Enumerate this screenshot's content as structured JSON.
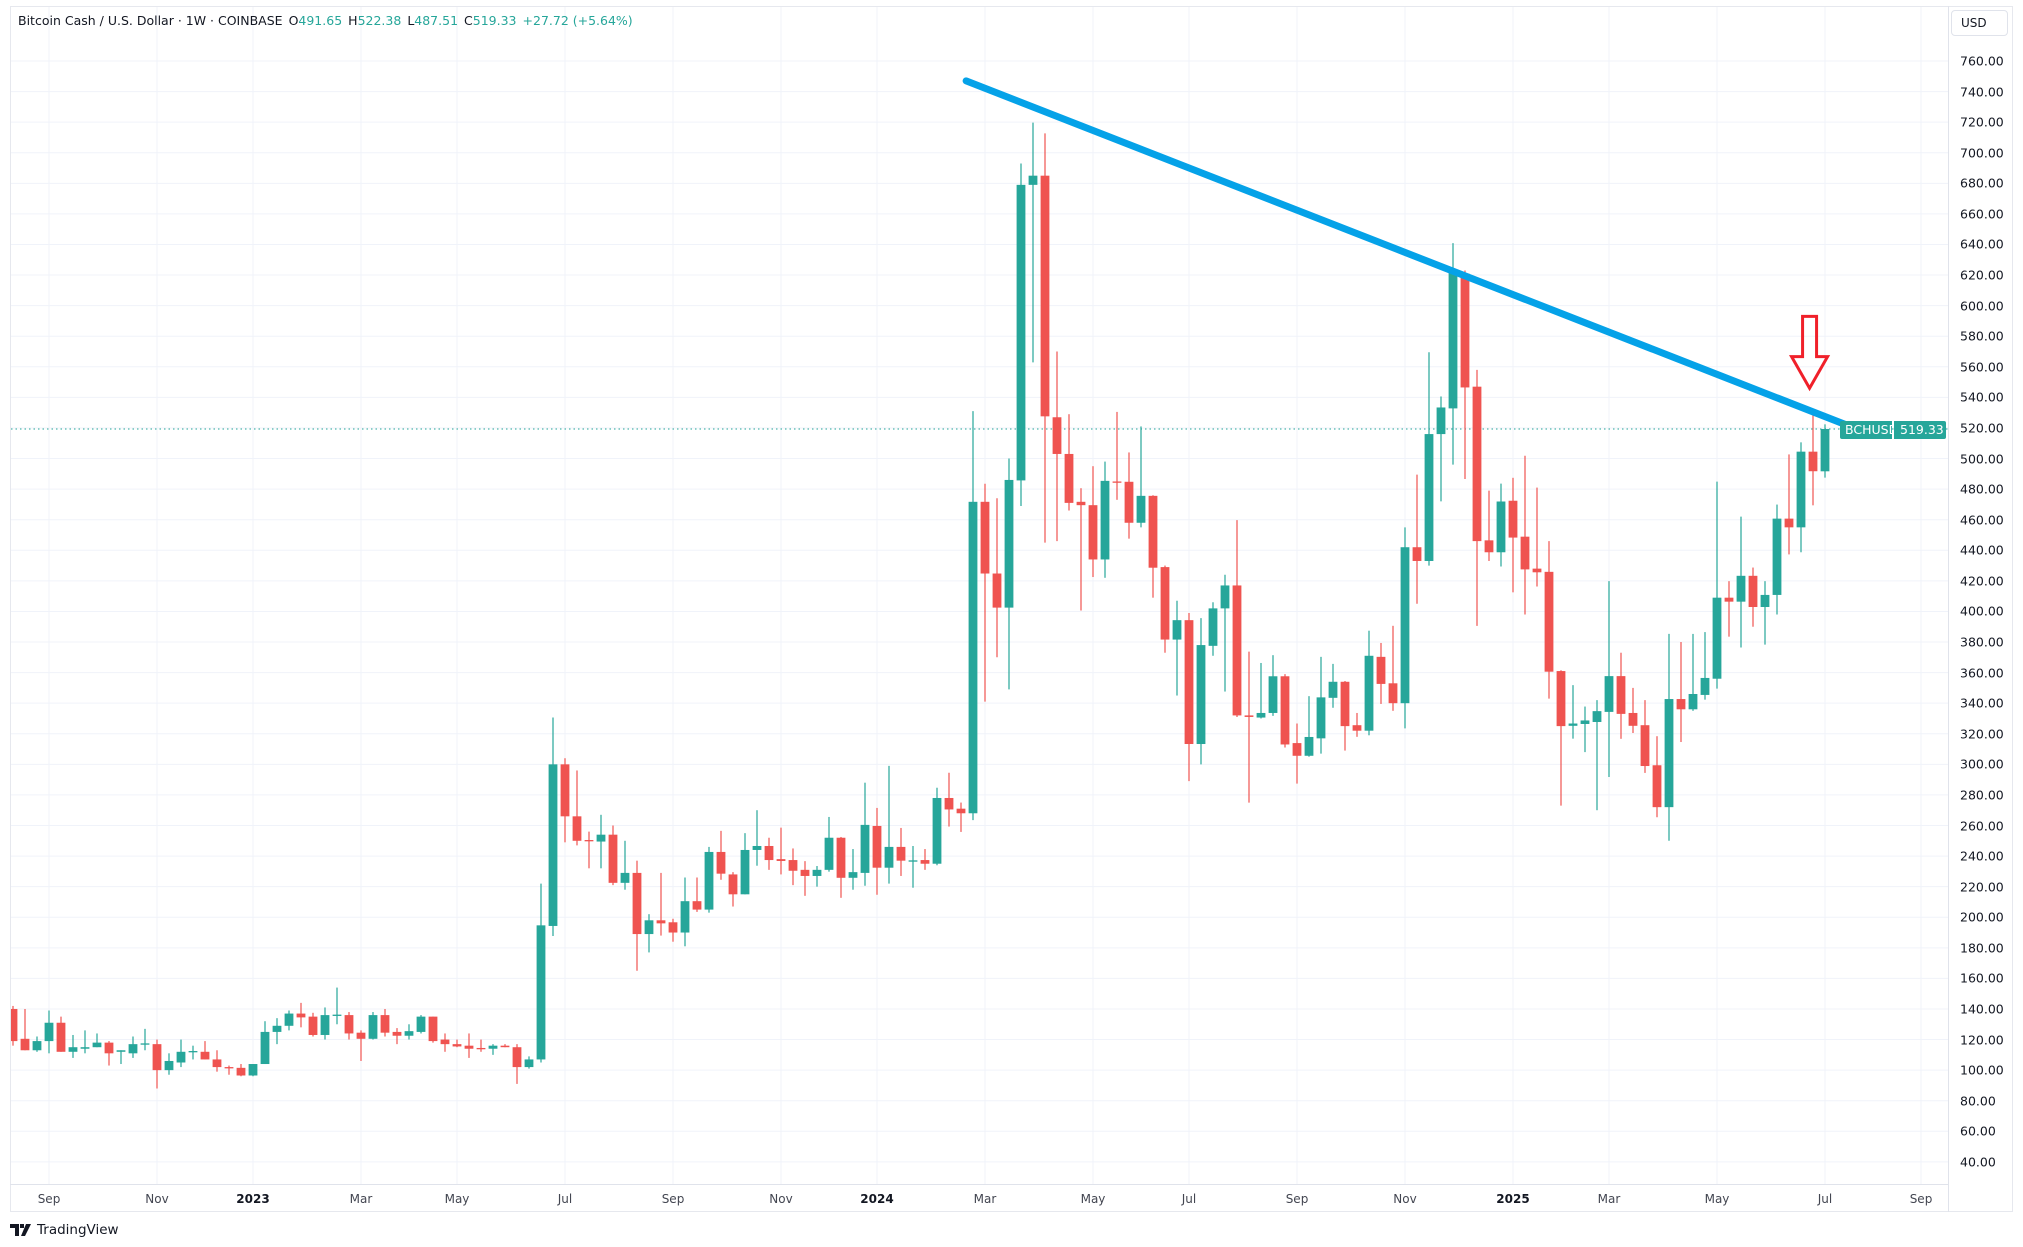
{
  "header": {
    "symbol_title": "Bitcoin Cash / U.S. Dollar · 1W · COINBASE",
    "open_label": "O",
    "open": "491.65",
    "high_label": "H",
    "high": "522.38",
    "low_label": "L",
    "low": "487.51",
    "close_label": "C",
    "close": "519.33",
    "change": "+27.72 (+5.64%)"
  },
  "price_axis": {
    "currency_button": "USD",
    "last_price_symbol": "BCHUSD",
    "last_price": "519.33"
  },
  "footer": {
    "brand": "TradingView"
  },
  "colors": {
    "up": "#26a69a",
    "down": "#ef5350",
    "trendline": "#05a2e8",
    "arrow": "#f0202a",
    "grid": "#f0f3fa"
  },
  "chart_data": {
    "type": "candlestick",
    "interval": "1W",
    "ylim": [
      40,
      770
    ],
    "grid": true,
    "y_ticks": [
      "40.00",
      "60.00",
      "80.00",
      "100.00",
      "120.00",
      "140.00",
      "160.00",
      "180.00",
      "200.00",
      "220.00",
      "240.00",
      "260.00",
      "280.00",
      "300.00",
      "320.00",
      "340.00",
      "360.00",
      "380.00",
      "400.00",
      "420.00",
      "440.00",
      "460.00",
      "480.00",
      "500.00",
      "520.00",
      "540.00",
      "560.00",
      "580.00",
      "600.00",
      "620.00",
      "640.00",
      "660.00",
      "680.00",
      "700.00",
      "720.00",
      "740.00",
      "760.00"
    ],
    "x_ticks": [
      {
        "label": "Sep",
        "date": "2022-09-05"
      },
      {
        "label": "Nov",
        "date": "2022-11-07"
      },
      {
        "label": "2023",
        "date": "2023-01-02",
        "year": true
      },
      {
        "label": "Mar",
        "date": "2023-03-06"
      },
      {
        "label": "May",
        "date": "2023-05-01"
      },
      {
        "label": "Jul",
        "date": "2023-07-03"
      },
      {
        "label": "Sep",
        "date": "2023-09-04"
      },
      {
        "label": "Nov",
        "date": "2023-11-06"
      },
      {
        "label": "2024",
        "date": "2024-01-01",
        "year": true
      },
      {
        "label": "Mar",
        "date": "2024-03-04"
      },
      {
        "label": "May",
        "date": "2024-05-06"
      },
      {
        "label": "Jul",
        "date": "2024-07-01"
      },
      {
        "label": "Sep",
        "date": "2024-09-02"
      },
      {
        "label": "Nov",
        "date": "2024-11-04"
      },
      {
        "label": "2025",
        "date": "2025-01-06",
        "year": true
      },
      {
        "label": "Mar",
        "date": "2025-03-03"
      },
      {
        "label": "May",
        "date": "2025-05-05"
      },
      {
        "label": "Jul",
        "date": "2025-07-07"
      },
      {
        "label": "Sep",
        "date": "2025-09-01"
      }
    ],
    "last_price_line": 519.33,
    "trendline": {
      "start": {
        "date": "2024-02-22",
        "price": 747
      },
      "end": {
        "date": "2025-08-01",
        "price": 516.5
      }
    },
    "arrow_annotation": {
      "date": "2025-06-28",
      "price_tip": 546,
      "price_top": 593,
      "direction": "down"
    },
    "candles_columns": [
      "date",
      "open",
      "high",
      "low",
      "close"
    ],
    "candles": [
      [
        "2022-08-15",
        140,
        142,
        116,
        119
      ],
      [
        "2022-08-22",
        120.5,
        140,
        113,
        113
      ],
      [
        "2022-08-29",
        113,
        122,
        112,
        119
      ],
      [
        "2022-09-05",
        119,
        139,
        111,
        131
      ],
      [
        "2022-09-12",
        131,
        135,
        112,
        112
      ],
      [
        "2022-09-19",
        112,
        123,
        108,
        115
      ],
      [
        "2022-09-26",
        114,
        126,
        111,
        115
      ],
      [
        "2022-10-03",
        115,
        124,
        115,
        118
      ],
      [
        "2022-10-10",
        118,
        119,
        103,
        111
      ],
      [
        "2022-10-17",
        112,
        113,
        104,
        113
      ],
      [
        "2022-10-24",
        111,
        122,
        108,
        117
      ],
      [
        "2022-10-31",
        117,
        127,
        113,
        117.5
      ],
      [
        "2022-11-07",
        117,
        120,
        88,
        100
      ],
      [
        "2022-11-14",
        100,
        111,
        97,
        106
      ],
      [
        "2022-11-21",
        105,
        120,
        102,
        112
      ],
      [
        "2022-11-28",
        112,
        116,
        107,
        112.5
      ],
      [
        "2022-12-05",
        112,
        119,
        107,
        107
      ],
      [
        "2022-12-12",
        107,
        113,
        99,
        102
      ],
      [
        "2022-12-19",
        102,
        103,
        97,
        101.5
      ],
      [
        "2022-12-26",
        101.5,
        104,
        96,
        96.5
      ],
      [
        "2023-01-02",
        96.5,
        104,
        96,
        104
      ],
      [
        "2023-01-09",
        104,
        132,
        104,
        125
      ],
      [
        "2023-01-16",
        125,
        134,
        117,
        129
      ],
      [
        "2023-01-23",
        129,
        139,
        126,
        137
      ],
      [
        "2023-01-30",
        137,
        144,
        128,
        134.5
      ],
      [
        "2023-02-06",
        135,
        137.5,
        122,
        123
      ],
      [
        "2023-02-13",
        123,
        141,
        120,
        136
      ],
      [
        "2023-02-20",
        136,
        154,
        130,
        136.3
      ],
      [
        "2023-02-27",
        136,
        138,
        120,
        124
      ],
      [
        "2023-03-06",
        124.5,
        126,
        106,
        120.5
      ],
      [
        "2023-03-13",
        120.5,
        138,
        120,
        136
      ],
      [
        "2023-03-20",
        136,
        140,
        122,
        124.5
      ],
      [
        "2023-03-27",
        125,
        127.5,
        117,
        122.5
      ],
      [
        "2023-04-03",
        122.5,
        130,
        120,
        125.5
      ],
      [
        "2023-04-10",
        125,
        136,
        124,
        135
      ],
      [
        "2023-04-17",
        135,
        135,
        118,
        119
      ],
      [
        "2023-04-24",
        120,
        124,
        112,
        117
      ],
      [
        "2023-05-01",
        117,
        120,
        115,
        115.5
      ],
      [
        "2023-05-08",
        116,
        124,
        108,
        114
      ],
      [
        "2023-05-15",
        114.5,
        120,
        112,
        114
      ],
      [
        "2023-05-22",
        114,
        117,
        110,
        116
      ],
      [
        "2023-05-29",
        116,
        117,
        115,
        115
      ],
      [
        "2023-06-05",
        115,
        117,
        91,
        102
      ],
      [
        "2023-06-12",
        102,
        109,
        101,
        107
      ],
      [
        "2023-06-19",
        107,
        222,
        105,
        194.7
      ],
      [
        "2023-06-26",
        194.3,
        330.6,
        187.7,
        300
      ],
      [
        "2023-07-03",
        300,
        304,
        249,
        266
      ],
      [
        "2023-07-10",
        266,
        296,
        247,
        250
      ],
      [
        "2023-07-17",
        250.5,
        256,
        232,
        250
      ],
      [
        "2023-07-24",
        249.5,
        267,
        232,
        254
      ],
      [
        "2023-07-31",
        254,
        260,
        221,
        222.5
      ],
      [
        "2023-08-07",
        222.5,
        250,
        218,
        229
      ],
      [
        "2023-08-14",
        229,
        237,
        165,
        189
      ],
      [
        "2023-08-21",
        189,
        202,
        177,
        198
      ],
      [
        "2023-08-28",
        198,
        229,
        188,
        196
      ],
      [
        "2023-09-04",
        196.7,
        199,
        184,
        190
      ],
      [
        "2023-09-11",
        190,
        226,
        181,
        210.5
      ],
      [
        "2023-09-18",
        210.5,
        226,
        203.5,
        205
      ],
      [
        "2023-09-25",
        205,
        246,
        203,
        242.7
      ],
      [
        "2023-10-02",
        242.7,
        256.5,
        224.5,
        228.5
      ],
      [
        "2023-10-09",
        228,
        229.5,
        207,
        215
      ],
      [
        "2023-10-16",
        215,
        255,
        215,
        244
      ],
      [
        "2023-10-23",
        244,
        270,
        233.7,
        246.6
      ],
      [
        "2023-10-30",
        246.6,
        252,
        231,
        237.4
      ],
      [
        "2023-11-06",
        238,
        258.6,
        228,
        236.8
      ],
      [
        "2023-11-13",
        237.4,
        245,
        221,
        230.4
      ],
      [
        "2023-11-20",
        231,
        236.7,
        214,
        227
      ],
      [
        "2023-11-27",
        227,
        233.5,
        220,
        231
      ],
      [
        "2023-12-04",
        231,
        265.6,
        229.8,
        252
      ],
      [
        "2023-12-11",
        252,
        252.5,
        212.7,
        225.8
      ],
      [
        "2023-12-18",
        225.8,
        244.6,
        218,
        229.5
      ],
      [
        "2023-12-25",
        229,
        288,
        220.6,
        260.4
      ],
      [
        "2024-01-01",
        259.7,
        271.5,
        214.7,
        232.4
      ],
      [
        "2024-01-08",
        232.4,
        299,
        222,
        246
      ],
      [
        "2024-01-15",
        246,
        258.4,
        227,
        237
      ],
      [
        "2024-01-22",
        237,
        246.6,
        219.3,
        237.2
      ],
      [
        "2024-01-29",
        237.4,
        244.6,
        231,
        235
      ],
      [
        "2024-02-05",
        235,
        284.7,
        234,
        278
      ],
      [
        "2024-02-12",
        278,
        294.5,
        259.3,
        270.5
      ],
      [
        "2024-02-19",
        271,
        275,
        255.8,
        268
      ],
      [
        "2024-02-26",
        268,
        531,
        263.5,
        471.7
      ],
      [
        "2024-03-04",
        471.7,
        483.5,
        341,
        424.8
      ],
      [
        "2024-03-11",
        424.8,
        474,
        370,
        402.5
      ],
      [
        "2024-03-18",
        402.5,
        500,
        349,
        486
      ],
      [
        "2024-03-25",
        485.7,
        693,
        469,
        679
      ],
      [
        "2024-04-01",
        679,
        719.7,
        562.9,
        685
      ],
      [
        "2024-04-08",
        685,
        712.7,
        445,
        527.6
      ],
      [
        "2024-04-15",
        527,
        570,
        446,
        503
      ],
      [
        "2024-04-22",
        503,
        529,
        466,
        471
      ],
      [
        "2024-04-29",
        471.7,
        480.6,
        400.6,
        469.5
      ],
      [
        "2024-05-06",
        469.5,
        495,
        422.5,
        434
      ],
      [
        "2024-05-13",
        434,
        498,
        422,
        485.4
      ],
      [
        "2024-05-20",
        485,
        530.5,
        473,
        484.4
      ],
      [
        "2024-05-27",
        484.8,
        504,
        447.6,
        458
      ],
      [
        "2024-06-03",
        458,
        521,
        455,
        475.6
      ],
      [
        "2024-06-10",
        475.6,
        476,
        409,
        428.6
      ],
      [
        "2024-06-17",
        429,
        430,
        373,
        381.6
      ],
      [
        "2024-06-24",
        381.6,
        407,
        345,
        394.3
      ],
      [
        "2024-07-01",
        394.3,
        399,
        289,
        313.3
      ],
      [
        "2024-07-08",
        313.3,
        395.6,
        300,
        378
      ],
      [
        "2024-07-15",
        377.5,
        406,
        371,
        402
      ],
      [
        "2024-07-22",
        402,
        424,
        347.6,
        417
      ],
      [
        "2024-07-29",
        417,
        459.7,
        331,
        332
      ],
      [
        "2024-08-05",
        332,
        373.7,
        275,
        331
      ],
      [
        "2024-08-12",
        330.6,
        366.3,
        330,
        333.6
      ],
      [
        "2024-08-19",
        333.6,
        371.4,
        331.7,
        357.6
      ],
      [
        "2024-08-26",
        357.6,
        359,
        311,
        313
      ],
      [
        "2024-09-02",
        313.9,
        326.7,
        287.4,
        305.6
      ],
      [
        "2024-09-09",
        305.6,
        344.6,
        305,
        317.9
      ],
      [
        "2024-09-16",
        317,
        370.3,
        307,
        343.8
      ],
      [
        "2024-09-23",
        343.5,
        365.7,
        337,
        354
      ],
      [
        "2024-09-30",
        354,
        354.5,
        309,
        325
      ],
      [
        "2024-10-07",
        325.6,
        333.6,
        318,
        322
      ],
      [
        "2024-10-14",
        322,
        387.4,
        319,
        371
      ],
      [
        "2024-10-21",
        370.3,
        379.4,
        339.5,
        352.6
      ],
      [
        "2024-10-28",
        353,
        390.6,
        335,
        340
      ],
      [
        "2024-11-04",
        340,
        455,
        323.5,
        442
      ],
      [
        "2024-11-11",
        442,
        489.5,
        405,
        433
      ],
      [
        "2024-11-18",
        433,
        569.5,
        430,
        516
      ],
      [
        "2024-11-25",
        516,
        540.6,
        472,
        533.4
      ],
      [
        "2024-12-02",
        532.8,
        640.9,
        496,
        623.5
      ],
      [
        "2024-12-09",
        621,
        623,
        486.6,
        546.5
      ],
      [
        "2024-12-16",
        547,
        558,
        390.6,
        446
      ],
      [
        "2024-12-23",
        446.5,
        479,
        433,
        438.7
      ],
      [
        "2024-12-30",
        438.7,
        483.6,
        429.4,
        471.9
      ],
      [
        "2025-01-06",
        472.4,
        487.4,
        412.5,
        448.3
      ],
      [
        "2025-01-13",
        448.9,
        501.8,
        398,
        427.5
      ],
      [
        "2025-01-20",
        428,
        481,
        416.3,
        425.6
      ],
      [
        "2025-01-27",
        425.9,
        446,
        343,
        360.6
      ],
      [
        "2025-02-03",
        361,
        361.5,
        273,
        325
      ],
      [
        "2025-02-10",
        325.2,
        351.8,
        316.8,
        326.7
      ],
      [
        "2025-02-17",
        326.4,
        337.8,
        308,
        328.7
      ],
      [
        "2025-02-24",
        327.7,
        342,
        270,
        334.8
      ],
      [
        "2025-03-03",
        334.3,
        419.8,
        291.7,
        357.7
      ],
      [
        "2025-03-10",
        357.7,
        373,
        316.7,
        333
      ],
      [
        "2025-03-17",
        333.6,
        350,
        320.5,
        325.2
      ],
      [
        "2025-03-24",
        325.6,
        342,
        294.4,
        298.9
      ],
      [
        "2025-03-31",
        299.4,
        318.4,
        265.4,
        272
      ],
      [
        "2025-04-07",
        272,
        385.3,
        250,
        342.7
      ],
      [
        "2025-04-14",
        342.7,
        380,
        314.6,
        336
      ],
      [
        "2025-04-21",
        336,
        385.3,
        335,
        346
      ],
      [
        "2025-04-28",
        345.4,
        386.5,
        342.3,
        356.5
      ],
      [
        "2025-05-05",
        356,
        484.9,
        349.5,
        409
      ],
      [
        "2025-05-12",
        409,
        419.8,
        383.5,
        406.4
      ],
      [
        "2025-05-19",
        406.4,
        462,
        376.4,
        423.3
      ],
      [
        "2025-05-26",
        423.3,
        428.7,
        390,
        402.9
      ],
      [
        "2025-06-02",
        402.9,
        419.8,
        378.3,
        410.8
      ],
      [
        "2025-06-09",
        410.8,
        469.9,
        398,
        460.7
      ],
      [
        "2025-06-16",
        460.7,
        502.7,
        437.3,
        455
      ],
      [
        "2025-06-23",
        455,
        510.6,
        438.7,
        504.5
      ],
      [
        "2025-06-30",
        504.5,
        529.4,
        469.4,
        491.7
      ],
      [
        "2025-07-07",
        491.65,
        522.38,
        487.51,
        519.33
      ]
    ]
  }
}
